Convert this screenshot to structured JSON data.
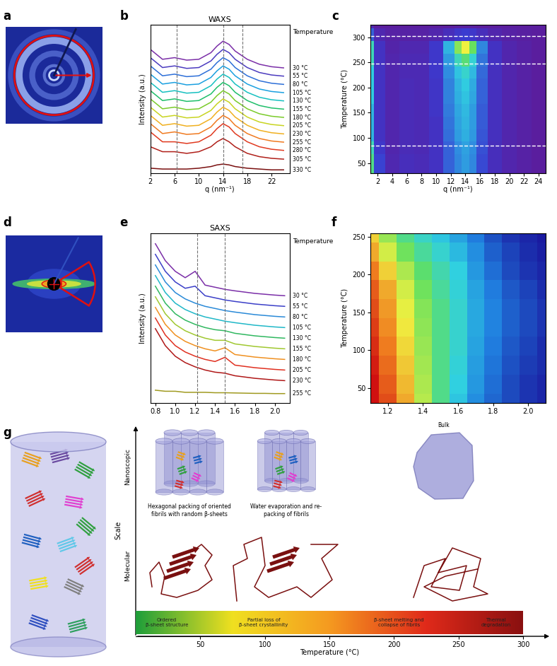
{
  "chart_data": [
    {
      "panel": "b",
      "type": "line",
      "title": "WAXS",
      "x_label": "q (nm⁻¹)",
      "y_label": "Intensity (a.u.)",
      "legend_title": "Temperature",
      "x": [
        2,
        4,
        6,
        8,
        10,
        12,
        13,
        14,
        15,
        16,
        18,
        20,
        22,
        24
      ],
      "series": [
        {
          "name": "30 °C",
          "color": "#7b2fa8",
          "values": [
            7.5,
            6.9,
            7.0,
            6.85,
            6.9,
            7.3,
            7.7,
            8.0,
            7.8,
            7.4,
            6.9,
            6.6,
            6.45,
            6.38
          ]
        },
        {
          "name": "55 °C",
          "color": "#4b3bbf",
          "values": [
            7.0,
            6.4,
            6.5,
            6.35,
            6.4,
            6.8,
            7.2,
            7.5,
            7.3,
            6.9,
            6.4,
            6.1,
            5.95,
            5.88
          ]
        },
        {
          "name": "80 °C",
          "color": "#2d6fd8",
          "values": [
            6.5,
            5.9,
            6.0,
            5.85,
            5.9,
            6.3,
            6.7,
            7.0,
            6.8,
            6.4,
            5.9,
            5.6,
            5.45,
            5.38
          ]
        },
        {
          "name": "105 °C",
          "color": "#1aa0e0",
          "values": [
            6.0,
            5.4,
            5.5,
            5.35,
            5.4,
            5.8,
            6.2,
            6.5,
            6.3,
            5.9,
            5.4,
            5.1,
            4.95,
            4.88
          ]
        },
        {
          "name": "130 °C",
          "color": "#16c0c0",
          "values": [
            5.5,
            4.9,
            5.0,
            4.85,
            4.9,
            5.3,
            5.7,
            6.0,
            5.8,
            5.4,
            4.9,
            4.6,
            4.45,
            4.38
          ]
        },
        {
          "name": "155 °C",
          "color": "#1fbf6a",
          "values": [
            5.0,
            4.4,
            4.5,
            4.35,
            4.4,
            4.8,
            5.2,
            5.5,
            5.3,
            4.9,
            4.4,
            4.1,
            3.95,
            3.88
          ]
        },
        {
          "name": "180 °C",
          "color": "#7acb2a",
          "values": [
            4.5,
            3.9,
            4.0,
            3.85,
            3.9,
            4.3,
            4.7,
            5.0,
            4.8,
            4.4,
            3.9,
            3.6,
            3.45,
            3.38
          ]
        },
        {
          "name": "205 °C",
          "color": "#c8d420",
          "values": [
            4.0,
            3.4,
            3.5,
            3.35,
            3.4,
            3.8,
            4.2,
            4.5,
            4.3,
            3.9,
            3.4,
            3.1,
            2.95,
            2.88
          ]
        },
        {
          "name": "230 °C",
          "color": "#f0b020",
          "values": [
            3.5,
            2.9,
            3.0,
            2.85,
            2.9,
            3.3,
            3.7,
            4.0,
            3.8,
            3.4,
            2.9,
            2.6,
            2.45,
            2.38
          ]
        },
        {
          "name": "255 °C",
          "color": "#f07a20",
          "values": [
            3.0,
            2.4,
            2.5,
            2.35,
            2.4,
            2.8,
            3.2,
            3.5,
            3.3,
            2.9,
            2.4,
            2.1,
            1.95,
            1.88
          ]
        },
        {
          "name": "280 °C",
          "color": "#e03a20",
          "values": [
            2.5,
            1.9,
            1.9,
            1.8,
            1.9,
            2.3,
            2.7,
            3.0,
            2.8,
            2.4,
            1.9,
            1.6,
            1.45,
            1.38
          ]
        },
        {
          "name": "305 °C",
          "color": "#b0201a",
          "values": [
            1.6,
            1.3,
            1.3,
            1.2,
            1.3,
            1.6,
            1.9,
            2.1,
            1.9,
            1.6,
            1.2,
            1.0,
            0.9,
            0.85
          ]
        },
        {
          "name": "330 °C",
          "color": "#7a1010",
          "values": [
            0.3,
            0.25,
            0.25,
            0.25,
            0.3,
            0.4,
            0.5,
            0.55,
            0.5,
            0.4,
            0.3,
            0.25,
            0.2,
            0.2
          ]
        }
      ],
      "xlim": [
        2,
        25
      ],
      "xticks": [
        2,
        6,
        10,
        14,
        18,
        22
      ],
      "ylim": [
        0,
        9
      ],
      "tick_labels": "x",
      "reference_lines": [
        6.3,
        14,
        17.2
      ]
    },
    {
      "panel": "c",
      "type": "heatmap",
      "x_label": "q (nm⁻¹)",
      "y_label": "Temperature (°C)",
      "x": [
        1,
        2,
        4,
        6,
        8,
        10,
        12,
        13,
        14,
        15,
        16,
        18,
        20,
        22,
        24
      ],
      "y": [
        30,
        55,
        80,
        105,
        130,
        155,
        180,
        205,
        230,
        255,
        280,
        305,
        330
      ],
      "cells": [
        [
          0.6,
          0.25,
          0.15,
          0.18,
          0.17,
          0.2,
          0.3,
          0.36,
          0.4,
          0.36,
          0.26,
          0.18,
          0.14,
          0.12,
          0.1
        ],
        [
          0.6,
          0.25,
          0.15,
          0.18,
          0.17,
          0.2,
          0.3,
          0.36,
          0.4,
          0.36,
          0.26,
          0.18,
          0.14,
          0.12,
          0.1
        ],
        [
          0.55,
          0.22,
          0.14,
          0.17,
          0.16,
          0.2,
          0.3,
          0.37,
          0.41,
          0.37,
          0.27,
          0.18,
          0.14,
          0.12,
          0.1
        ],
        [
          0.45,
          0.2,
          0.14,
          0.17,
          0.16,
          0.2,
          0.32,
          0.4,
          0.44,
          0.39,
          0.28,
          0.19,
          0.14,
          0.12,
          0.1
        ],
        [
          0.45,
          0.2,
          0.14,
          0.17,
          0.16,
          0.2,
          0.33,
          0.41,
          0.45,
          0.4,
          0.29,
          0.19,
          0.14,
          0.12,
          0.1
        ],
        [
          0.45,
          0.2,
          0.14,
          0.17,
          0.16,
          0.21,
          0.34,
          0.42,
          0.46,
          0.4,
          0.29,
          0.19,
          0.14,
          0.12,
          0.1
        ],
        [
          0.5,
          0.2,
          0.14,
          0.17,
          0.16,
          0.21,
          0.35,
          0.44,
          0.48,
          0.42,
          0.3,
          0.19,
          0.14,
          0.12,
          0.1
        ],
        [
          0.5,
          0.2,
          0.14,
          0.17,
          0.16,
          0.21,
          0.35,
          0.45,
          0.5,
          0.43,
          0.3,
          0.19,
          0.14,
          0.12,
          0.1
        ],
        [
          0.5,
          0.2,
          0.14,
          0.16,
          0.16,
          0.22,
          0.37,
          0.48,
          0.53,
          0.46,
          0.31,
          0.19,
          0.14,
          0.12,
          0.1
        ],
        [
          0.55,
          0.2,
          0.14,
          0.16,
          0.16,
          0.22,
          0.4,
          0.55,
          0.62,
          0.52,
          0.33,
          0.2,
          0.14,
          0.12,
          0.1
        ],
        [
          0.55,
          0.2,
          0.13,
          0.15,
          0.15,
          0.22,
          0.45,
          0.68,
          0.78,
          0.65,
          0.36,
          0.2,
          0.14,
          0.12,
          0.1
        ],
        [
          0.3,
          0.15,
          0.12,
          0.12,
          0.12,
          0.14,
          0.18,
          0.22,
          0.24,
          0.22,
          0.18,
          0.14,
          0.12,
          0.11,
          0.1
        ],
        [
          0.15,
          0.1,
          0.1,
          0.1,
          0.1,
          0.1,
          0.1,
          0.11,
          0.11,
          0.11,
          0.1,
          0.1,
          0.1,
          0.1,
          0.1
        ]
      ],
      "xlim": [
        1,
        25
      ],
      "xticks": [
        2,
        4,
        6,
        8,
        10,
        12,
        14,
        16,
        18,
        20,
        22,
        24
      ],
      "ylim": [
        30,
        325
      ],
      "yticks": [
        50,
        100,
        150,
        200,
        250,
        300
      ],
      "reference_lines": [
        85,
        248,
        302
      ]
    },
    {
      "panel": "e",
      "type": "line",
      "title": "SAXS",
      "y_label": "Intensity (a.u.)",
      "legend_title": "Temperature",
      "x": [
        0.8,
        0.9,
        1.0,
        1.1,
        1.2,
        1.3,
        1.4,
        1.5,
        1.6,
        1.7,
        1.8,
        1.9,
        2.0,
        2.1
      ],
      "series": [
        {
          "name": "30 °C",
          "color": "#7b2fa8",
          "values": [
            7.5,
            6.7,
            6.2,
            5.9,
            6.2,
            5.55,
            5.45,
            5.35,
            5.28,
            5.22,
            5.16,
            5.12,
            5.08,
            5.05
          ]
        },
        {
          "name": "55 °C",
          "color": "#3b3fc8",
          "values": [
            7.0,
            6.2,
            5.7,
            5.4,
            5.5,
            5.05,
            4.95,
            4.85,
            4.78,
            4.72,
            4.66,
            4.62,
            4.58,
            4.55
          ]
        },
        {
          "name": "80 °C",
          "color": "#2a8ad8",
          "values": [
            6.5,
            5.7,
            5.2,
            4.9,
            4.7,
            4.55,
            4.45,
            4.35,
            4.28,
            4.22,
            4.16,
            4.12,
            4.08,
            4.05
          ]
        },
        {
          "name": "105 °C",
          "color": "#20b8c8",
          "values": [
            6.0,
            5.2,
            4.7,
            4.4,
            4.2,
            4.05,
            3.95,
            3.85,
            3.78,
            3.72,
            3.66,
            3.62,
            3.58,
            3.55
          ]
        },
        {
          "name": "130 °C",
          "color": "#30b860",
          "values": [
            5.5,
            4.7,
            4.2,
            3.9,
            3.7,
            3.55,
            3.45,
            3.4,
            3.28,
            3.22,
            3.16,
            3.12,
            3.08,
            3.05
          ]
        },
        {
          "name": "155 °C",
          "color": "#a0c830",
          "values": [
            5.0,
            4.2,
            3.7,
            3.4,
            3.2,
            3.05,
            2.95,
            2.95,
            2.78,
            2.72,
            2.66,
            2.62,
            2.58,
            2.55
          ]
        },
        {
          "name": "180 °C",
          "color": "#f09020",
          "values": [
            4.5,
            3.7,
            3.2,
            2.9,
            2.7,
            2.55,
            2.45,
            2.6,
            2.28,
            2.22,
            2.16,
            2.12,
            2.08,
            2.05
          ]
        },
        {
          "name": "205 °C",
          "color": "#e03020",
          "values": [
            4.0,
            3.2,
            2.7,
            2.4,
            2.2,
            2.05,
            1.95,
            2.15,
            1.78,
            1.72,
            1.66,
            1.62,
            1.58,
            1.55
          ]
        },
        {
          "name": "230 °C",
          "color": "#b01818",
          "values": [
            3.5,
            2.7,
            2.2,
            1.9,
            1.7,
            1.55,
            1.45,
            1.4,
            1.28,
            1.22,
            1.16,
            1.12,
            1.08,
            1.05
          ]
        },
        {
          "name": "255 °C",
          "color": "#a09a20",
          "values": [
            0.6,
            0.55,
            0.55,
            0.5,
            0.5,
            0.5,
            0.48,
            0.48,
            0.47,
            0.46,
            0.45,
            0.45,
            0.44,
            0.44
          ]
        }
      ],
      "xlim": [
        0.75,
        2.15
      ],
      "xticks": [
        0.8,
        1.0,
        1.2,
        1.4,
        1.6,
        1.8,
        2.0
      ],
      "ylim": [
        0,
        8
      ],
      "tick_labels": "x",
      "reference_lines": [
        1.22,
        1.5
      ]
    },
    {
      "panel": "f",
      "type": "heatmap",
      "y_label": "Temperature (°C)",
      "x": [
        1.1,
        1.2,
        1.3,
        1.4,
        1.5,
        1.6,
        1.7,
        1.8,
        1.9,
        2.0,
        2.1
      ],
      "y": [
        30,
        55,
        80,
        105,
        130,
        155,
        180,
        205,
        230,
        255
      ],
      "cells": [
        [
          1.0,
          0.92,
          0.8,
          0.65,
          0.52,
          0.4,
          0.3,
          0.24,
          0.2,
          0.17,
          0.15
        ],
        [
          1.0,
          0.9,
          0.78,
          0.64,
          0.52,
          0.42,
          0.32,
          0.25,
          0.2,
          0.17,
          0.15
        ],
        [
          0.98,
          0.88,
          0.76,
          0.63,
          0.52,
          0.43,
          0.33,
          0.26,
          0.21,
          0.18,
          0.16
        ],
        [
          0.96,
          0.86,
          0.74,
          0.62,
          0.52,
          0.44,
          0.34,
          0.27,
          0.22,
          0.19,
          0.16
        ],
        [
          0.94,
          0.84,
          0.72,
          0.61,
          0.52,
          0.44,
          0.35,
          0.28,
          0.23,
          0.2,
          0.17
        ],
        [
          0.92,
          0.82,
          0.7,
          0.6,
          0.52,
          0.44,
          0.35,
          0.28,
          0.23,
          0.2,
          0.17
        ],
        [
          0.9,
          0.8,
          0.68,
          0.58,
          0.5,
          0.43,
          0.34,
          0.27,
          0.22,
          0.19,
          0.16
        ],
        [
          0.86,
          0.75,
          0.64,
          0.55,
          0.48,
          0.42,
          0.32,
          0.25,
          0.2,
          0.17,
          0.15
        ],
        [
          0.8,
          0.68,
          0.58,
          0.5,
          0.44,
          0.38,
          0.3,
          0.23,
          0.19,
          0.16,
          0.14
        ],
        [
          0.75,
          0.62,
          0.52,
          0.45,
          0.4,
          0.34,
          0.27,
          0.21,
          0.17,
          0.15,
          0.13
        ]
      ],
      "xlim": [
        1.1,
        2.1
      ],
      "xticks": [
        1.2,
        1.4,
        1.6,
        1.8,
        2.0
      ],
      "ylim": [
        30,
        255
      ],
      "yticks": [
        50,
        100,
        150,
        200,
        250
      ]
    }
  ],
  "images": [
    {
      "panel": "a"
    },
    {
      "panel": "d"
    }
  ],
  "diagram": {
    "panel": "g",
    "y_label": "Scale",
    "levels": [
      "Nanoscopic",
      "Molecular"
    ],
    "stages": [
      "Hexagonal packing of oriented\nfibrils with random β-sheets",
      "Water evaporation and re-\npacking of fibrils",
      "Bulk"
    ],
    "regions": [
      "Ordered\nβ-sheet structure",
      "Partial loss of\nβ-sheet crystallinity",
      "β-sheet melting and\ncollapse of fibrils",
      "Thermal\ndegradation"
    ],
    "colors": [
      "#1f9e3a",
      "#f0e020",
      "#f59a20",
      "#e02a1a",
      "#8a1010"
    ],
    "x_label": "Temperature (°C)",
    "xlim": [
      0,
      300
    ],
    "xticks": [
      50,
      100,
      150,
      200,
      250,
      300
    ]
  }
}
